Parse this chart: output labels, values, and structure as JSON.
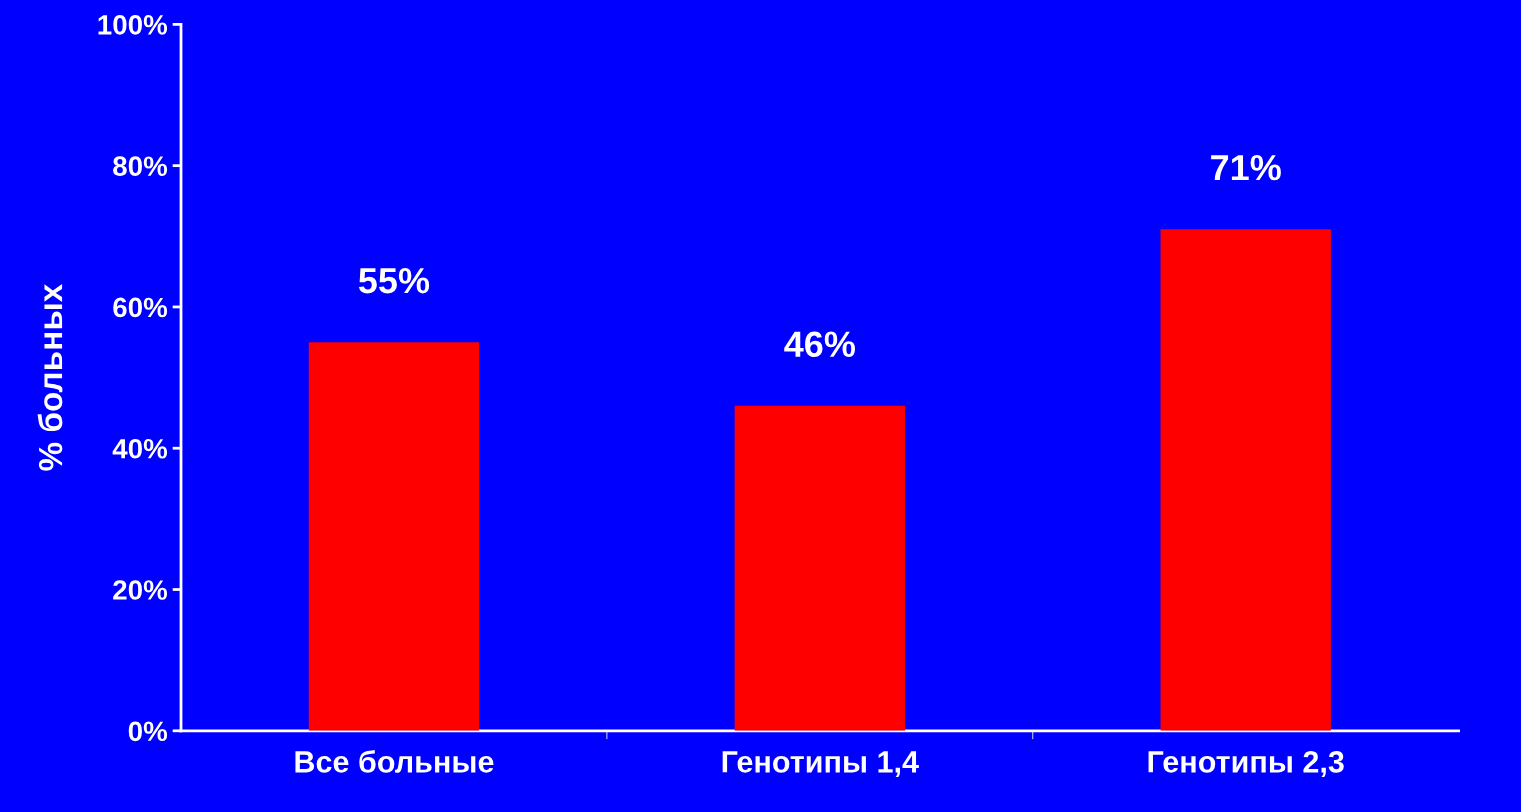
{
  "chart_data": {
    "type": "bar",
    "ylabel": "% больных",
    "categories": [
      "Все больные",
      "Генотипы 1,4",
      "Генотипы 2,3"
    ],
    "values": [
      55,
      46,
      71
    ],
    "color": "#ff0000",
    "value_labels": [
      "55%",
      "46%",
      "71%"
    ],
    "ylim": [
      0,
      100
    ],
    "yticks": [
      {
        "value": 0,
        "label": "0%"
      },
      {
        "value": 20,
        "label": "20%"
      },
      {
        "value": 40,
        "label": "40%"
      },
      {
        "value": 60,
        "label": "60%"
      },
      {
        "value": 80,
        "label": "80%"
      },
      {
        "value": 100,
        "label": "100%"
      }
    ],
    "grid": false,
    "legend": false
  }
}
